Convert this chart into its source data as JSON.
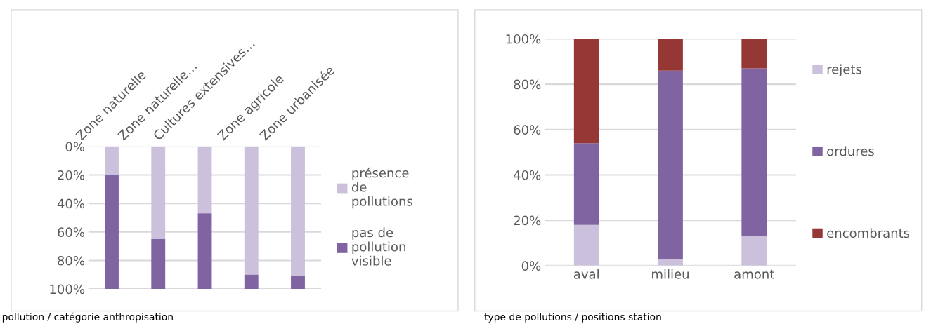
{
  "chart_data": [
    {
      "type": "bar",
      "stacked": true,
      "categories": [
        "Zone naturelle",
        "Zone naturelle…",
        "Cultures extensives…",
        "Zone agricole",
        "Zone urbanisée"
      ],
      "series": [
        {
          "name": "présence de pollutions",
          "color": "#ccc1dc",
          "values": [
            20,
            65,
            47,
            90,
            91
          ]
        },
        {
          "name": "pas de pollution visible",
          "color": "#8064a2",
          "values": [
            80,
            35,
            53,
            10,
            9
          ]
        }
      ],
      "ylim": [
        100,
        0
      ],
      "yticks": [
        {
          "value": 0,
          "label": "0%"
        },
        {
          "value": 20,
          "label": "20%"
        },
        {
          "value": 40,
          "label": "40%"
        },
        {
          "value": 60,
          "label": "60%"
        },
        {
          "value": 80,
          "label": "80%"
        },
        {
          "value": 100,
          "label": "100%"
        }
      ],
      "grid": "y",
      "legend": "right",
      "annotations": [
        "pollution / catégorie anthropisation"
      ]
    },
    {
      "type": "bar",
      "stacked": true,
      "categories": [
        "aval",
        "milieu",
        "amont"
      ],
      "series": [
        {
          "name": "rejets",
          "color": "#ccc1dc",
          "values": [
            18,
            3,
            13
          ]
        },
        {
          "name": "ordures",
          "color": "#8064a2",
          "values": [
            36,
            83,
            74
          ]
        },
        {
          "name": "encombrants",
          "color": "#953735",
          "values": [
            46,
            14,
            13
          ]
        }
      ],
      "ylim": [
        0,
        100
      ],
      "yticks": [
        {
          "value": 0,
          "label": "0%"
        },
        {
          "value": 20,
          "label": "20%"
        },
        {
          "value": 40,
          "label": "40%"
        },
        {
          "value": 60,
          "label": "60%"
        },
        {
          "value": 80,
          "label": "80%"
        },
        {
          "value": 100,
          "label": "100%"
        }
      ],
      "grid": "y",
      "legend": "right",
      "annotations": [
        "type de pollutions / positions station"
      ]
    }
  ]
}
